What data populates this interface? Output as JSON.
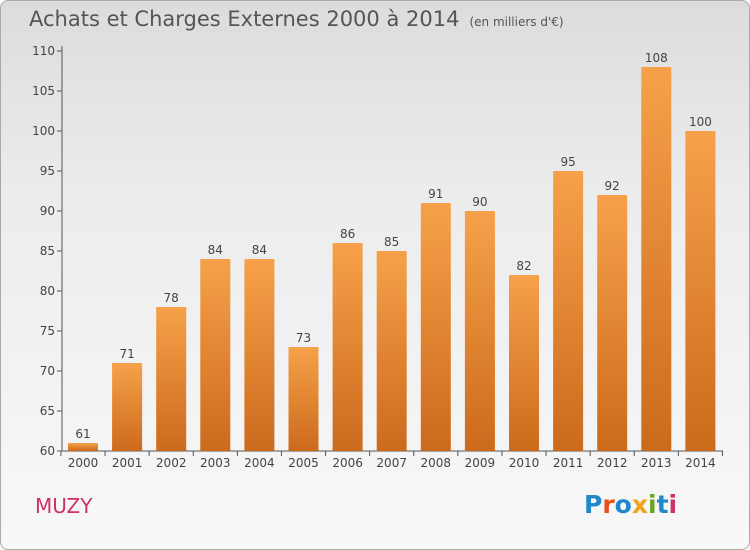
{
  "title": "Achats et Charges Externes 2000 à 2014",
  "unit_label": "(en milliers d'€)",
  "commune": "MUZY",
  "logo": {
    "text": "Proxiti",
    "colors": [
      "#1e88c8",
      "#e8501a",
      "#1e88c8",
      "#f0a21a",
      "#6aa520",
      "#1e88c8",
      "#cc3366"
    ]
  },
  "colors": {
    "bar_top": "#f6a14a",
    "bar_bottom": "#cc6a1c",
    "commune": "#cc3366"
  },
  "chart_data": {
    "type": "bar",
    "categories": [
      "2000",
      "2001",
      "2002",
      "2003",
      "2004",
      "2005",
      "2006",
      "2007",
      "2008",
      "2009",
      "2010",
      "2011",
      "2012",
      "2013",
      "2014"
    ],
    "values": [
      61,
      71,
      78,
      84,
      84,
      73,
      86,
      85,
      91,
      90,
      82,
      95,
      92,
      108,
      100
    ],
    "ylim": [
      60,
      110
    ],
    "yticks": [
      60,
      65,
      70,
      75,
      80,
      85,
      90,
      95,
      100,
      105,
      110
    ],
    "grid": false
  }
}
